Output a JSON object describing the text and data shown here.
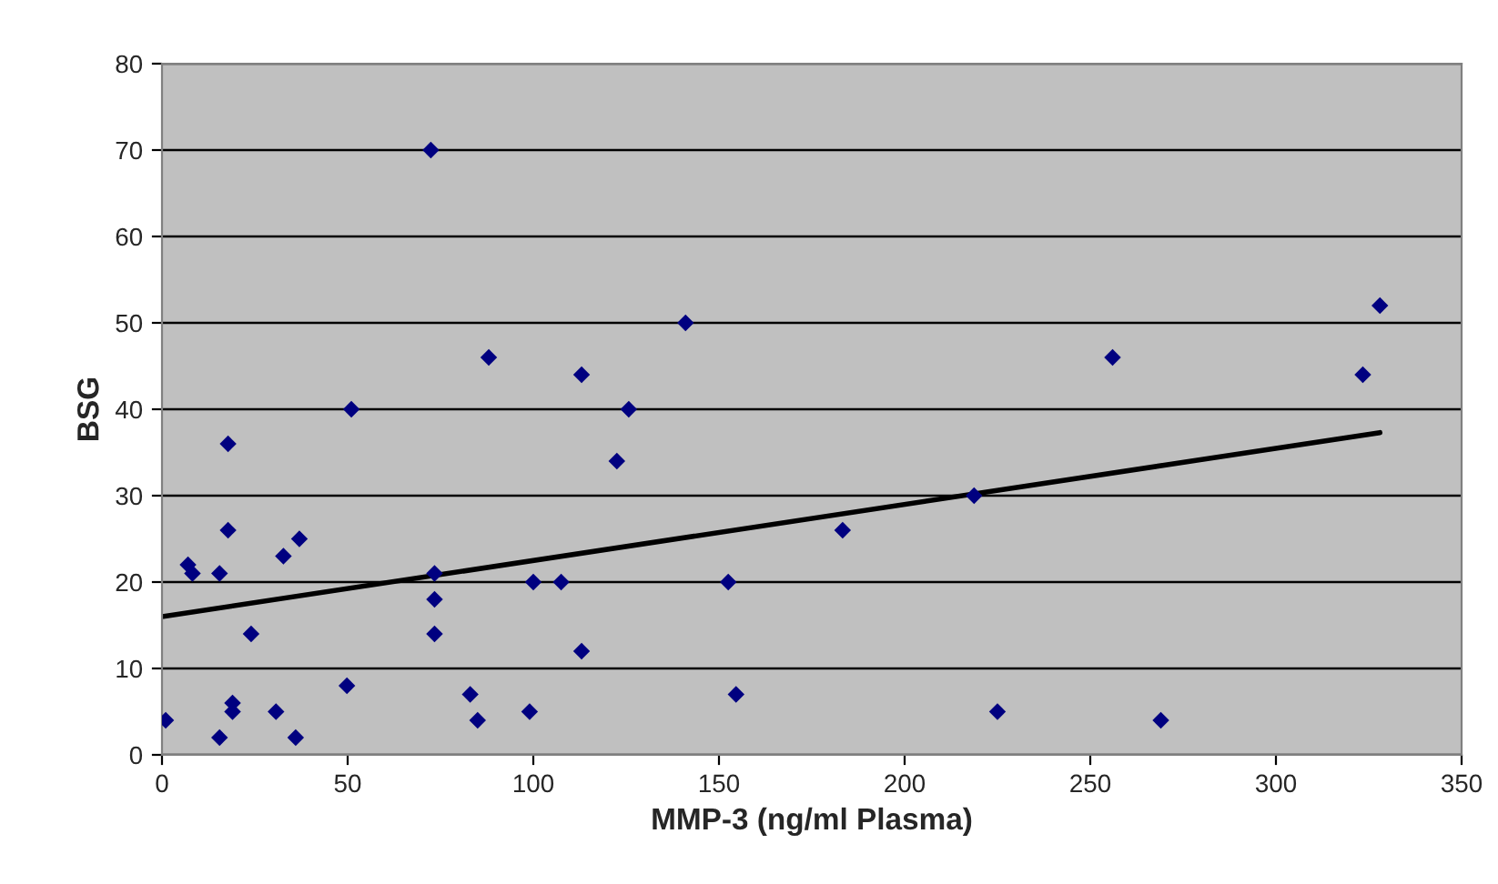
{
  "chart_data": {
    "type": "scatter",
    "xlabel": "MMP-3 (ng/ml Plasma)",
    "ylabel": "BSG",
    "xlim": [
      0,
      350
    ],
    "ylim": [
      0,
      80
    ],
    "xticks": [
      0,
      50,
      100,
      150,
      200,
      250,
      300,
      350
    ],
    "yticks": [
      0,
      10,
      20,
      30,
      40,
      50,
      60,
      70,
      80
    ],
    "grid": "y",
    "legend": false,
    "series": [
      {
        "marker": "diamond",
        "color": "#000080",
        "x": [
          1,
          7,
          8.2,
          15.5,
          15.5,
          17.8,
          17.8,
          19,
          19,
          24,
          30.7,
          32.7,
          37,
          36,
          49.8,
          51,
          72.4,
          73.4,
          73.4,
          73.4,
          83,
          85,
          88,
          99,
          100,
          107.5,
          113,
          113,
          122.5,
          125.7,
          141,
          152.5,
          154.6,
          183.3,
          218.7,
          225,
          256,
          269,
          323.4,
          328
        ],
        "values": [
          4,
          22,
          21,
          21,
          2,
          36,
          26,
          6,
          5,
          14,
          5,
          23,
          25,
          2,
          8,
          40,
          70,
          21,
          18,
          14,
          7,
          4,
          46,
          5,
          20,
          20,
          44,
          12,
          34,
          40,
          50,
          20,
          7,
          26,
          30,
          5,
          46,
          4,
          44,
          52
        ]
      },
      {
        "type": "line",
        "marker": "none",
        "color": "#000000",
        "x": [
          0,
          328
        ],
        "values": [
          16,
          37.3
        ]
      }
    ]
  }
}
